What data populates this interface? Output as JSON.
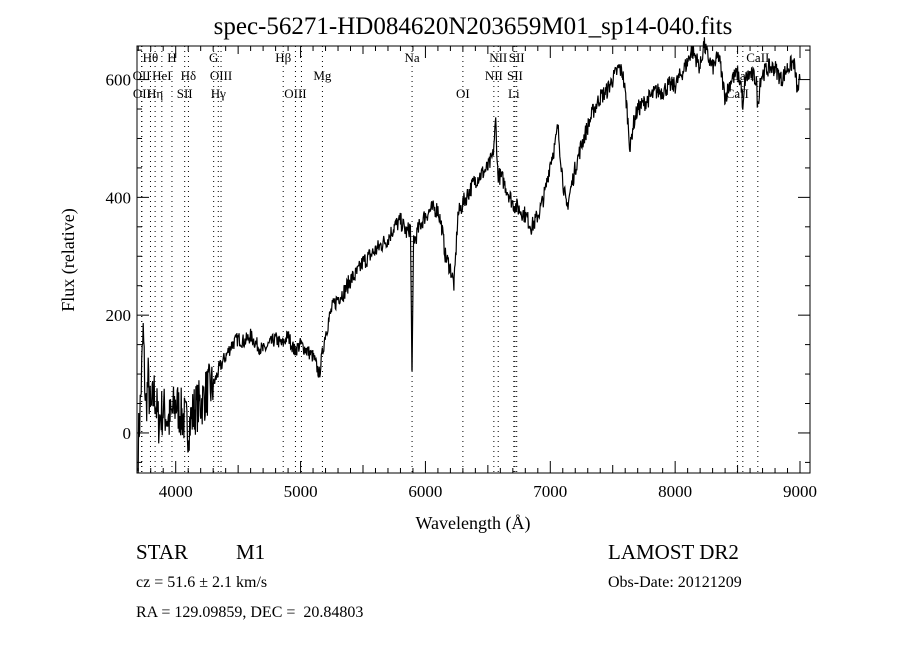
{
  "chart_data": {
    "type": "line",
    "title": "spec-56271-HD084620N203659M01_sp14-040.fits",
    "xlabel": "Wavelength (Å)",
    "ylabel": "Flux (relative)",
    "xlim": [
      3690,
      9080
    ],
    "ylim": [
      -68,
      657
    ],
    "xticks": [
      4000,
      5000,
      6000,
      7000,
      8000,
      9000
    ],
    "yticks": [
      0,
      200,
      400,
      600
    ],
    "grid": false,
    "series": [
      {
        "name": "spectrum",
        "x": [
          3700,
          3720,
          3740,
          3760,
          3780,
          3800,
          3830,
          3860,
          3900,
          3950,
          4000,
          4050,
          4100,
          4150,
          4200,
          4250,
          4300,
          4350,
          4400,
          4450,
          4500,
          4550,
          4600,
          4650,
          4700,
          4750,
          4800,
          4850,
          4900,
          4950,
          5000,
          5050,
          5100,
          5150,
          5200,
          5250,
          5300,
          5350,
          5400,
          5450,
          5500,
          5550,
          5600,
          5650,
          5700,
          5750,
          5800,
          5850,
          5880,
          5893,
          5905,
          5920,
          5950,
          6000,
          6050,
          6100,
          6130,
          6160,
          6200,
          6230,
          6260,
          6300,
          6350,
          6400,
          6450,
          6500,
          6540,
          6563,
          6580,
          6620,
          6660,
          6700,
          6750,
          6800,
          6850,
          6880,
          6920,
          6960,
          7000,
          7040,
          7060,
          7100,
          7130,
          7160,
          7200,
          7250,
          7300,
          7350,
          7400,
          7450,
          7500,
          7550,
          7580,
          7610,
          7640,
          7660,
          7700,
          7750,
          7800,
          7850,
          7900,
          7950,
          8000,
          8050,
          8100,
          8130,
          8160,
          8200,
          8230,
          8260,
          8300,
          8350,
          8400,
          8450,
          8500,
          8530,
          8542,
          8560,
          8600,
          8650,
          8662,
          8680,
          8700,
          8750,
          8800,
          8850,
          8900,
          8950,
          8980,
          9000
        ],
        "y": [
          -20,
          60,
          170,
          40,
          90,
          30,
          70,
          20,
          40,
          20,
          50,
          30,
          10,
          40,
          50,
          70,
          80,
          110,
          130,
          150,
          160,
          155,
          165,
          150,
          140,
          150,
          160,
          150,
          165,
          140,
          150,
          140,
          130,
          100,
          170,
          210,
          230,
          240,
          260,
          270,
          290,
          300,
          310,
          320,
          330,
          350,
          360,
          340,
          350,
          100,
          330,
          330,
          350,
          370,
          380,
          380,
          350,
          300,
          280,
          250,
          370,
          390,
          410,
          430,
          440,
          450,
          470,
          530,
          440,
          430,
          410,
          390,
          380,
          370,
          350,
          360,
          380,
          410,
          460,
          490,
          520,
          430,
          380,
          410,
          450,
          490,
          520,
          550,
          570,
          580,
          600,
          620,
          610,
          560,
          480,
          520,
          550,
          560,
          570,
          580,
          580,
          590,
          590,
          610,
          630,
          650,
          640,
          620,
          660,
          640,
          620,
          640,
          570,
          600,
          610,
          590,
          540,
          600,
          610,
          600,
          550,
          600,
          610,
          620,
          620,
          600,
          620,
          630,
          580,
          600
        ]
      }
    ],
    "line_markers": [
      {
        "label": "Hθ",
        "wavelength": 3798,
        "row": 1
      },
      {
        "label": "H",
        "wavelength": 3970,
        "row": 1
      },
      {
        "label": "G",
        "wavelength": 4304,
        "row": 1
      },
      {
        "label": "Hβ",
        "wavelength": 4861,
        "row": 1
      },
      {
        "label": "Na",
        "wavelength": 5893,
        "row": 1
      },
      {
        "label": "NII",
        "wavelength": 6583,
        "row": 1
      },
      {
        "label": "SII",
        "wavelength": 6731,
        "row": 1
      },
      {
        "label": "CaII",
        "wavelength": 8662,
        "row": 1
      },
      {
        "label": "OII",
        "wavelength": 3727,
        "row": 2
      },
      {
        "label": "HeI",
        "wavelength": 3889,
        "row": 2
      },
      {
        "label": "Hδ",
        "wavelength": 4102,
        "row": 2
      },
      {
        "label": "OIII",
        "wavelength": 4363,
        "row": 2
      },
      {
        "label": "Mg",
        "wavelength": 5175,
        "row": 2
      },
      {
        "label": "NII",
        "wavelength": 6548,
        "row": 2
      },
      {
        "label": "SII",
        "wavelength": 6717,
        "row": 2
      },
      {
        "label": "CaII",
        "wavelength": 8542,
        "row": 2
      },
      {
        "label": "OII",
        "wavelength": 3729,
        "row": 3
      },
      {
        "label": "Hη",
        "wavelength": 3835,
        "row": 3
      },
      {
        "label": "SII",
        "wavelength": 4072,
        "row": 3
      },
      {
        "label": "Hγ",
        "wavelength": 4341,
        "row": 3
      },
      {
        "label": "OIII",
        "wavelength": 4959,
        "row": 3
      },
      {
        "label": "OI",
        "wavelength": 6300,
        "row": 3
      },
      {
        "label": "Li",
        "wavelength": 6708,
        "row": 3
      },
      {
        "label": "CaII",
        "wavelength": 8498,
        "row": 3
      }
    ],
    "extra_marker_lines": [
      5007
    ]
  },
  "info": {
    "object_class": "STAR",
    "subclass": "M1",
    "survey": "LAMOST DR2",
    "redshift": "cz = 51.6 ± 2.1 km/s",
    "obs_date": "Obs-Date: 20121209",
    "coords": "RA = 129.09859, DEC =  20.84803"
  }
}
